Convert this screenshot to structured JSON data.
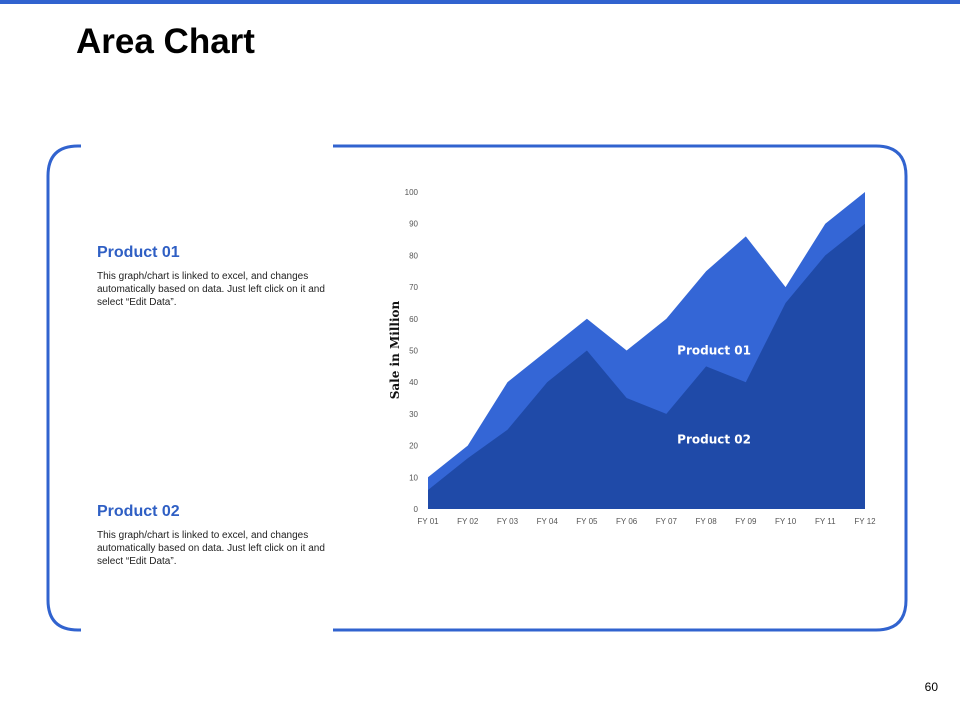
{
  "page": {
    "title": "Area Chart",
    "page_number": "60",
    "accent_color": "#3163cf"
  },
  "descriptions": [
    {
      "title": "Product 01",
      "text": "This graph/chart is linked to excel, and changes automatically based on data. Just left click on it and select “Edit Data”."
    },
    {
      "title": "Product 02",
      "text": "This graph/chart is linked to excel, and changes automatically based on data. Just left click on it and select “Edit Data”."
    }
  ],
  "chart_data": {
    "type": "area",
    "categories": [
      "FY 01",
      "FY 02",
      "FY 03",
      "FY 04",
      "FY 05",
      "FY 06",
      "FY 07",
      "FY 08",
      "FY 09",
      "FY 10",
      "FY 11",
      "FY 12"
    ],
    "series": [
      {
        "name": "Product 01",
        "values": [
          10,
          20,
          40,
          50,
          60,
          50,
          60,
          75,
          86,
          70,
          90,
          100
        ],
        "color": "#3466d6"
      },
      {
        "name": "Product 02",
        "values": [
          6,
          16,
          25,
          40,
          50,
          35,
          30,
          45,
          40,
          65,
          80,
          90
        ],
        "color": "#1f4aa8"
      }
    ],
    "ylabel": "Sale in Million",
    "xlabel": "",
    "ylim": [
      0,
      100
    ],
    "yticks": [
      0,
      10,
      20,
      30,
      40,
      50,
      60,
      70,
      80,
      90,
      100
    ],
    "grid": false,
    "legend": "inline labels",
    "series_labels": [
      {
        "text": "Product 01",
        "x": "FY 08",
        "y": 50
      },
      {
        "text": "Product 02",
        "x": "FY 08",
        "y": 22
      }
    ]
  }
}
